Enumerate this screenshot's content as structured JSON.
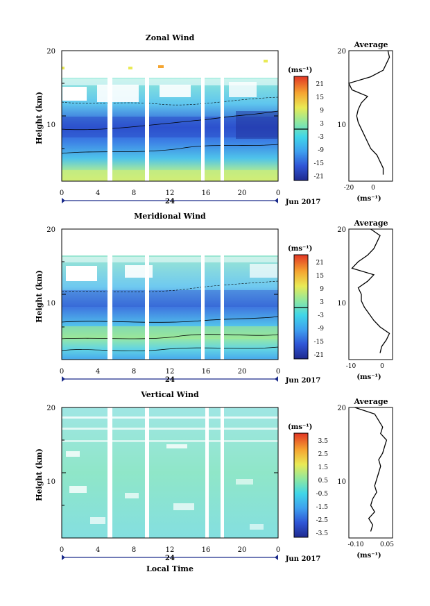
{
  "xaxis": {
    "ticks": [
      "0",
      "4",
      "8",
      "12",
      "16",
      "20",
      "0"
    ],
    "day_label": "24",
    "date_label": "Jun 2017",
    "xlabel": "Local Time"
  },
  "panels": [
    {
      "title": "Zonal Wind",
      "ylabel": "Height (km)",
      "yticks": [
        "20",
        "10"
      ],
      "unit_label": "(ms⁻¹)",
      "colorbar_ticks": [
        "21",
        "15",
        "9",
        "3",
        "-3",
        "-9",
        "-15",
        "-21"
      ],
      "avg_title": "Average",
      "avg_yticks": [
        "20",
        "10"
      ],
      "avg_xticks": [
        "-20",
        "0"
      ],
      "avg_unit": "(ms⁻¹)"
    },
    {
      "title": "Meridional Wind",
      "ylabel": "Height (km)",
      "yticks": [
        "20",
        "10"
      ],
      "unit_label": "(ms⁻¹)",
      "colorbar_ticks": [
        "21",
        "15",
        "9",
        "3",
        "-3",
        "-9",
        "-15",
        "-21"
      ],
      "avg_title": "Average",
      "avg_yticks": [
        "20",
        "10"
      ],
      "avg_xticks": [
        "-10",
        "0"
      ],
      "avg_unit": "(ms⁻¹)"
    },
    {
      "title": "Vertical Wind",
      "ylabel": "Height (km)",
      "yticks": [
        "20",
        "10"
      ],
      "unit_label": "(ms⁻¹)",
      "colorbar_ticks": [
        "3.5",
        "2.5",
        "1.5",
        "0.5",
        "-0.5",
        "-1.5",
        "-2.5",
        "-3.5"
      ],
      "avg_title": "Average",
      "avg_yticks": [
        "20",
        "10"
      ],
      "avg_xticks": [
        "-0.10",
        "0.05"
      ],
      "avg_unit": "(ms⁻¹)"
    }
  ],
  "chart_data": [
    {
      "type": "heatmap",
      "title": "Zonal Wind",
      "xlabel": "Local Time",
      "ylabel": "Height (km)",
      "xlim": [
        0,
        24
      ],
      "ylim": [
        0,
        20
      ],
      "colorbar_range": [
        -24,
        24
      ],
      "gaps_hours": [
        5.3,
        9.4,
        15.6,
        17.8
      ],
      "profile_heights_km": [
        1,
        2,
        3,
        4,
        5,
        6,
        7,
        8,
        9,
        10,
        11,
        12,
        13,
        14,
        15,
        16,
        17,
        18,
        19,
        20
      ],
      "profile": [
        2,
        2,
        0,
        -2,
        -6,
        -8,
        -10,
        -12,
        -14,
        -15,
        -14,
        -12,
        -8,
        -18,
        -20,
        -6,
        2,
        4,
        6,
        5
      ],
      "profile_xlim": [
        -20,
        8
      ]
    },
    {
      "type": "heatmap",
      "title": "Meridional Wind",
      "xlabel": "Local Time",
      "ylabel": "Height (km)",
      "xlim": [
        0,
        24
      ],
      "ylim": [
        0,
        20
      ],
      "colorbar_range": [
        -24,
        24
      ],
      "gaps_hours": [
        5.3,
        9.4,
        15.6,
        17.8
      ],
      "profile_heights_km": [
        1,
        2,
        3,
        4,
        5,
        6,
        7,
        8,
        9,
        10,
        11,
        12,
        13,
        14,
        15,
        16,
        17,
        18,
        19,
        20
      ],
      "profile": [
        0,
        0.5,
        2,
        3,
        0,
        -2,
        -3.5,
        -5,
        -6,
        -6,
        -7,
        -4,
        -2,
        -9,
        -7,
        -4,
        -2,
        -1,
        0,
        -3
      ],
      "profile_xlim": [
        -10,
        4
      ]
    },
    {
      "type": "heatmap",
      "title": "Vertical Wind",
      "xlabel": "Local Time",
      "ylabel": "Height (km)",
      "xlim": [
        0,
        24
      ],
      "ylim": [
        0,
        20
      ],
      "colorbar_range": [
        -4,
        4
      ],
      "gaps_hours": [
        5.3,
        9.4,
        15.6,
        17.8
      ],
      "profile_heights_km": [
        1,
        2,
        3,
        4,
        5,
        6,
        7,
        8,
        9,
        10,
        11,
        12,
        13,
        14,
        15,
        16,
        17,
        18,
        19,
        20
      ],
      "profile": [
        -0.04,
        -0.03,
        -0.05,
        -0.02,
        -0.04,
        -0.03,
        -0.01,
        -0.02,
        -0.01,
        0.0,
        0.01,
        0.0,
        0.02,
        0.03,
        0.04,
        0.01,
        0.02,
        0.0,
        -0.02,
        -0.12
      ],
      "profile_xlim": [
        -0.15,
        0.07
      ]
    }
  ]
}
